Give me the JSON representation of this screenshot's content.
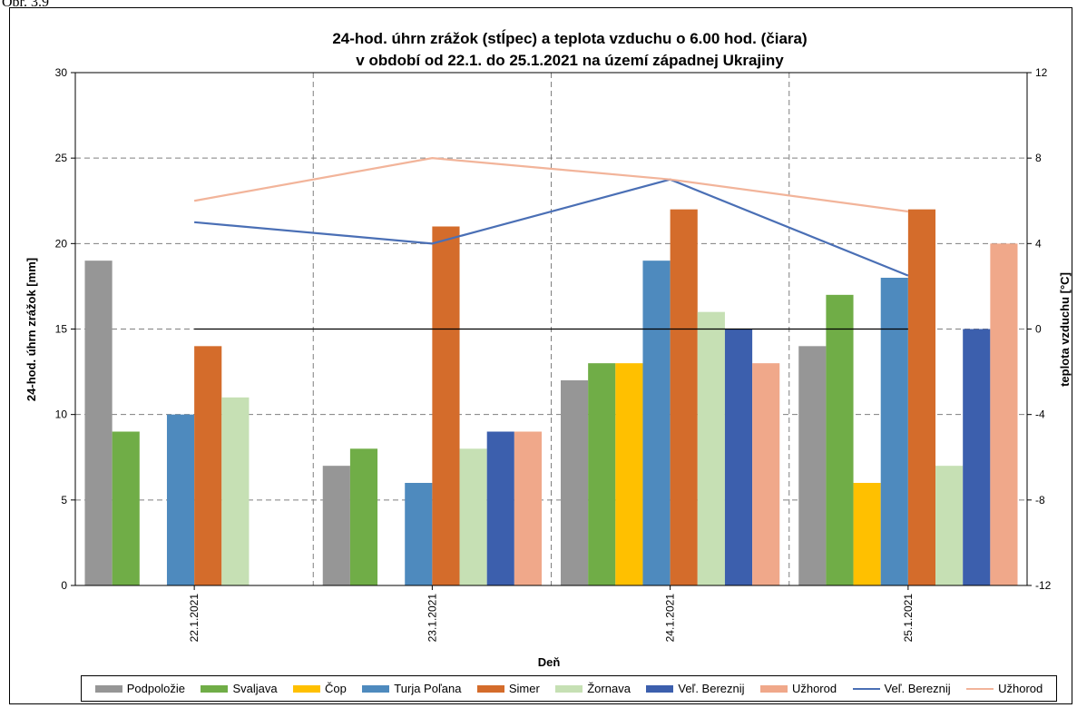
{
  "figure_label": "Obr. 3.9",
  "chart_data": {
    "type": "bar",
    "title": [
      "24-hod. úhrn zrážok (stĺpec) a teplota vzduchu o 6.00 hod. (čiara)",
      "v období od 22.1. do 25.1.2021 na území západnej Ukrajiny"
    ],
    "xlabel": "Deň",
    "ylabel": "24-hod. úhrn zrážok [mm]",
    "y2label": "teplota vzduchu [°C]",
    "ylim": [
      0,
      30
    ],
    "y2lim": [
      -12,
      12
    ],
    "yticks": [
      "0",
      "5",
      "10",
      "15",
      "20",
      "25",
      "30"
    ],
    "y2ticks": [
      "-12",
      "-8",
      "-4",
      "0",
      "4",
      "8",
      "12"
    ],
    "grid": true,
    "legend_position": "bottom",
    "categories": [
      "22.1.2021",
      "23.1.2021",
      "24.1.2021",
      "25.1.2021"
    ],
    "series": [
      {
        "name": "Podpoložie",
        "color": "#969696",
        "values": [
          19,
          7,
          12,
          14
        ]
      },
      {
        "name": "Svaljava",
        "color": "#70ad47",
        "values": [
          9,
          8,
          13,
          17
        ]
      },
      {
        "name": "Čop",
        "color": "#ffc000",
        "values": [
          0,
          0,
          13,
          6
        ]
      },
      {
        "name": "Turja Poľana",
        "color": "#4e8abe",
        "values": [
          10,
          6,
          19,
          18
        ]
      },
      {
        "name": "Simer",
        "color": "#d46c2b",
        "values": [
          14,
          21,
          22,
          22
        ]
      },
      {
        "name": "Žornava",
        "color": "#c6e0b4",
        "values": [
          11,
          8,
          16,
          7
        ]
      },
      {
        "name": "Veľ. Bereznij",
        "color": "#3c5fad",
        "values": [
          0,
          9,
          15,
          15
        ]
      },
      {
        "name": "Užhorod",
        "color": "#f0a88a",
        "values": [
          0,
          9,
          13,
          20
        ]
      }
    ],
    "line_series": [
      {
        "name": "Veľ. Bereznij",
        "color": "#4a6fb5",
        "values": [
          5,
          4,
          7,
          2.5
        ]
      },
      {
        "name": "Užhorod",
        "color": "#f2b49a",
        "values": [
          6,
          8,
          7,
          5.5
        ]
      }
    ]
  }
}
